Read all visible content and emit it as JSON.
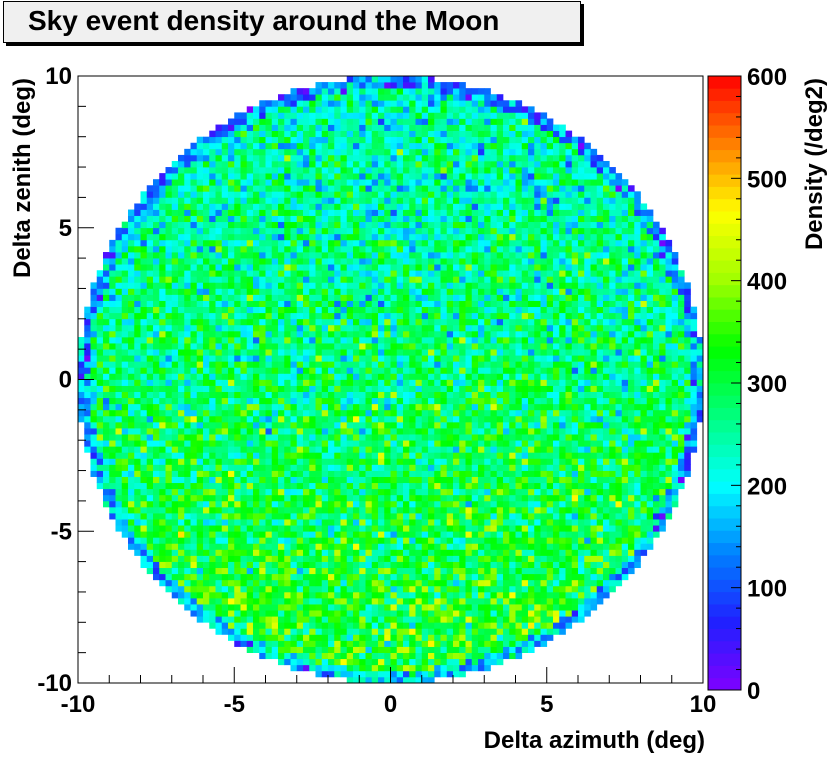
{
  "chart_data": {
    "type": "heatmap",
    "title": "Sky event density around the Moon",
    "xlabel": "Delta azimuth (deg)",
    "ylabel": "Delta zenith (deg)",
    "zlabel": "Density (/deg2)",
    "xlim": [
      -10,
      10
    ],
    "ylim": [
      -10,
      10
    ],
    "zlim": [
      0,
      600
    ],
    "xticks": [
      -10,
      -5,
      0,
      5,
      10
    ],
    "yticks": [
      -10,
      -5,
      0,
      5,
      10
    ],
    "zticks": [
      0,
      100,
      200,
      300,
      400,
      500,
      600
    ],
    "xtick_labels": [
      "-10",
      "-5",
      "0",
      "5",
      "10"
    ],
    "ytick_labels": [
      "-10",
      "-5",
      "0",
      "5",
      "10"
    ],
    "ztick_labels": [
      "0",
      "100",
      "200",
      "300",
      "400",
      "500",
      "600"
    ],
    "bins_per_axis": 100,
    "region": "disk of radius 10 deg centered at (0,0)",
    "density_top_mean": 230,
    "density_bottom_mean": 330,
    "palette": [
      "#8000ff",
      "#2020ff",
      "#0080ff",
      "#00ffff",
      "#00ff80",
      "#00ff00",
      "#a0ff00",
      "#ffff00",
      "#ff8000",
      "#ff0000"
    ]
  }
}
